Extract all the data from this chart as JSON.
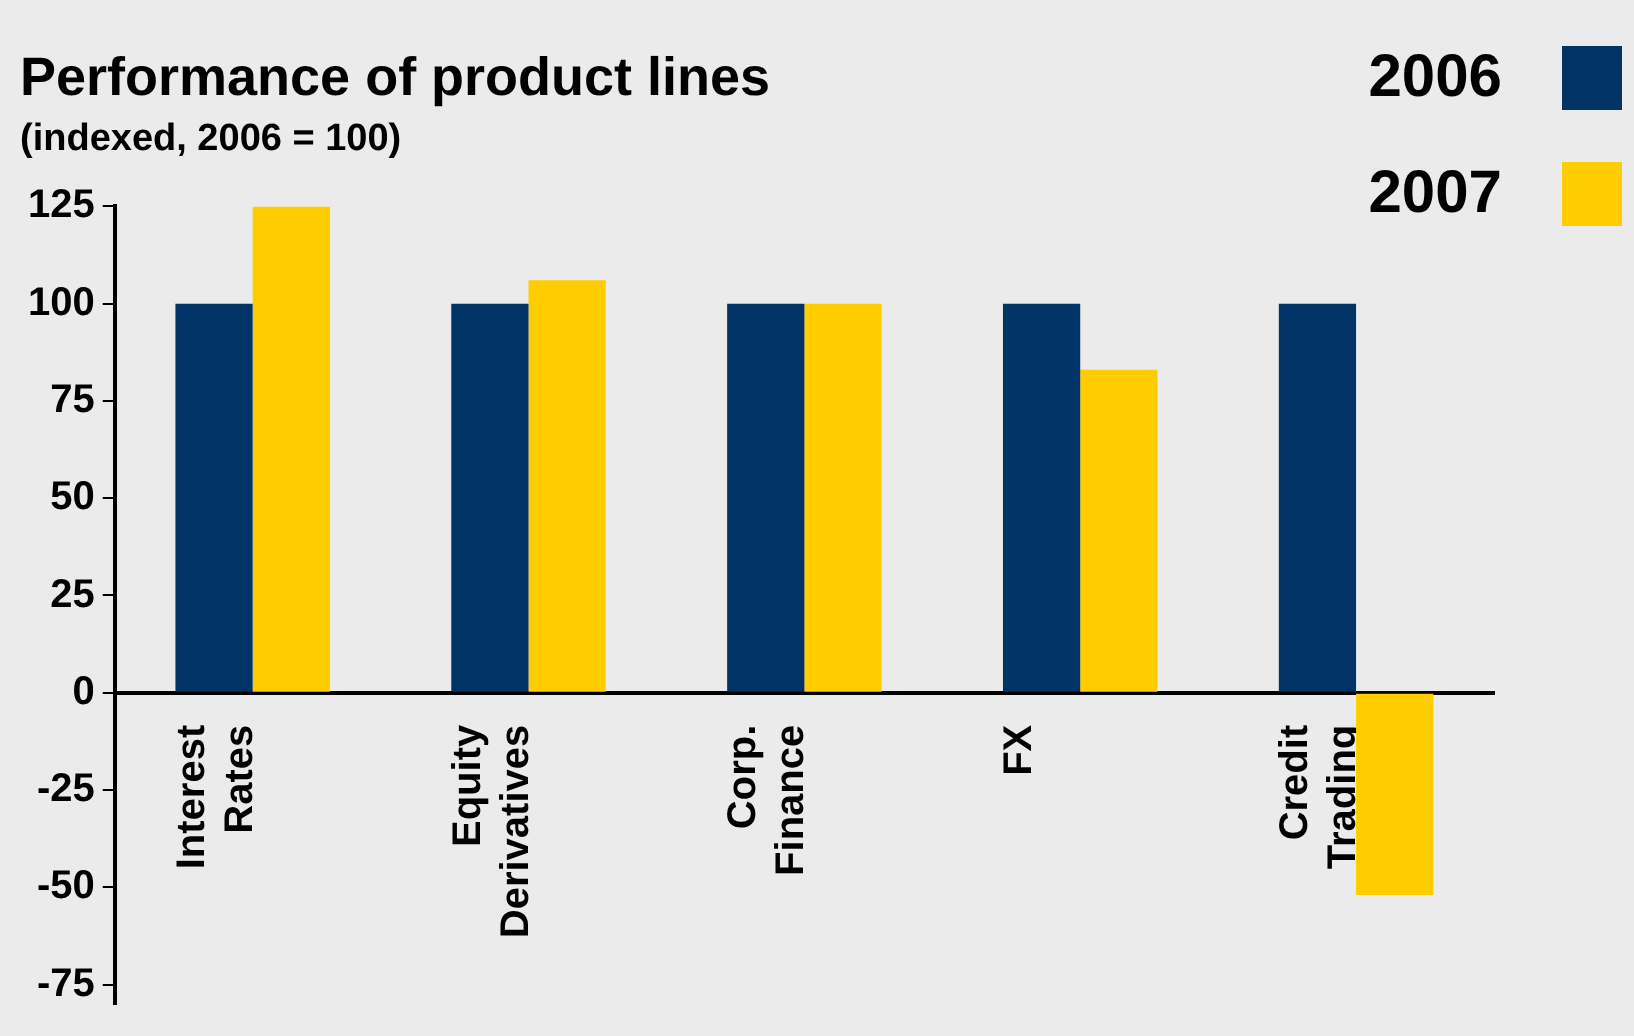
{
  "chart_data": {
    "type": "bar",
    "title": "Performance of product lines",
    "subtitle": "(indexed, 2006 = 100)",
    "categories": [
      "Interest Rates",
      "Equity Derivatives",
      "Corp. Finance",
      "FX",
      "Credit Trading"
    ],
    "series": [
      {
        "name": "2006",
        "color": "#003366",
        "values": [
          100,
          100,
          100,
          100,
          100
        ]
      },
      {
        "name": "2007",
        "color": "#ffcc00",
        "values": [
          125,
          106,
          100,
          83,
          -52
        ]
      }
    ],
    "ylim": [
      -80,
      125
    ],
    "yticks": [
      -75,
      -50,
      -25,
      0,
      25,
      50,
      75,
      100,
      125
    ],
    "grid": false,
    "legend": "top right"
  }
}
